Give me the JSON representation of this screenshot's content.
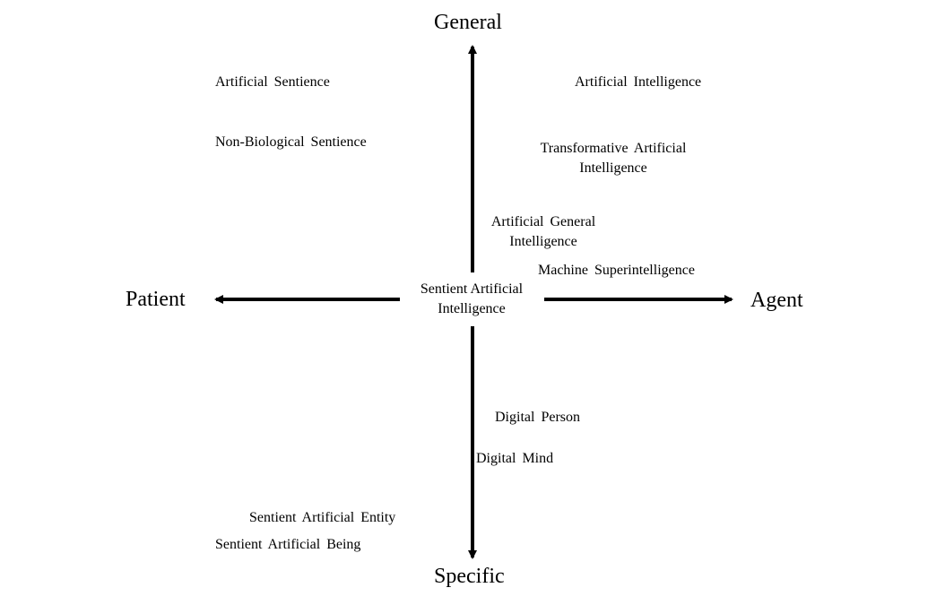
{
  "axes": {
    "top": "General",
    "bottom": "Specific",
    "left": "Patient",
    "right": "Agent"
  },
  "center": {
    "line1": "Sentient Artificial",
    "line2": "Intelligence"
  },
  "terms": {
    "artificial_sentience": "Artificial  Sentience",
    "non_biological_sentience": "Non-Biological  Sentience",
    "artificial_intelligence": "Artificial  Intelligence",
    "transformative_ai_line1": "Transformative  Artificial",
    "transformative_ai_line2": "Intelligence",
    "agi_line1": "Artificial  General",
    "agi_line2": "Intelligence",
    "machine_superintelligence": "Machine  Superintelligence",
    "digital_person": "Digital  Person",
    "digital_mind": "Digital  Mind",
    "sentient_artificial_entity": "Sentient Artificial  Entity",
    "sentient_artificial_being": "Sentient Artificial  Being"
  }
}
